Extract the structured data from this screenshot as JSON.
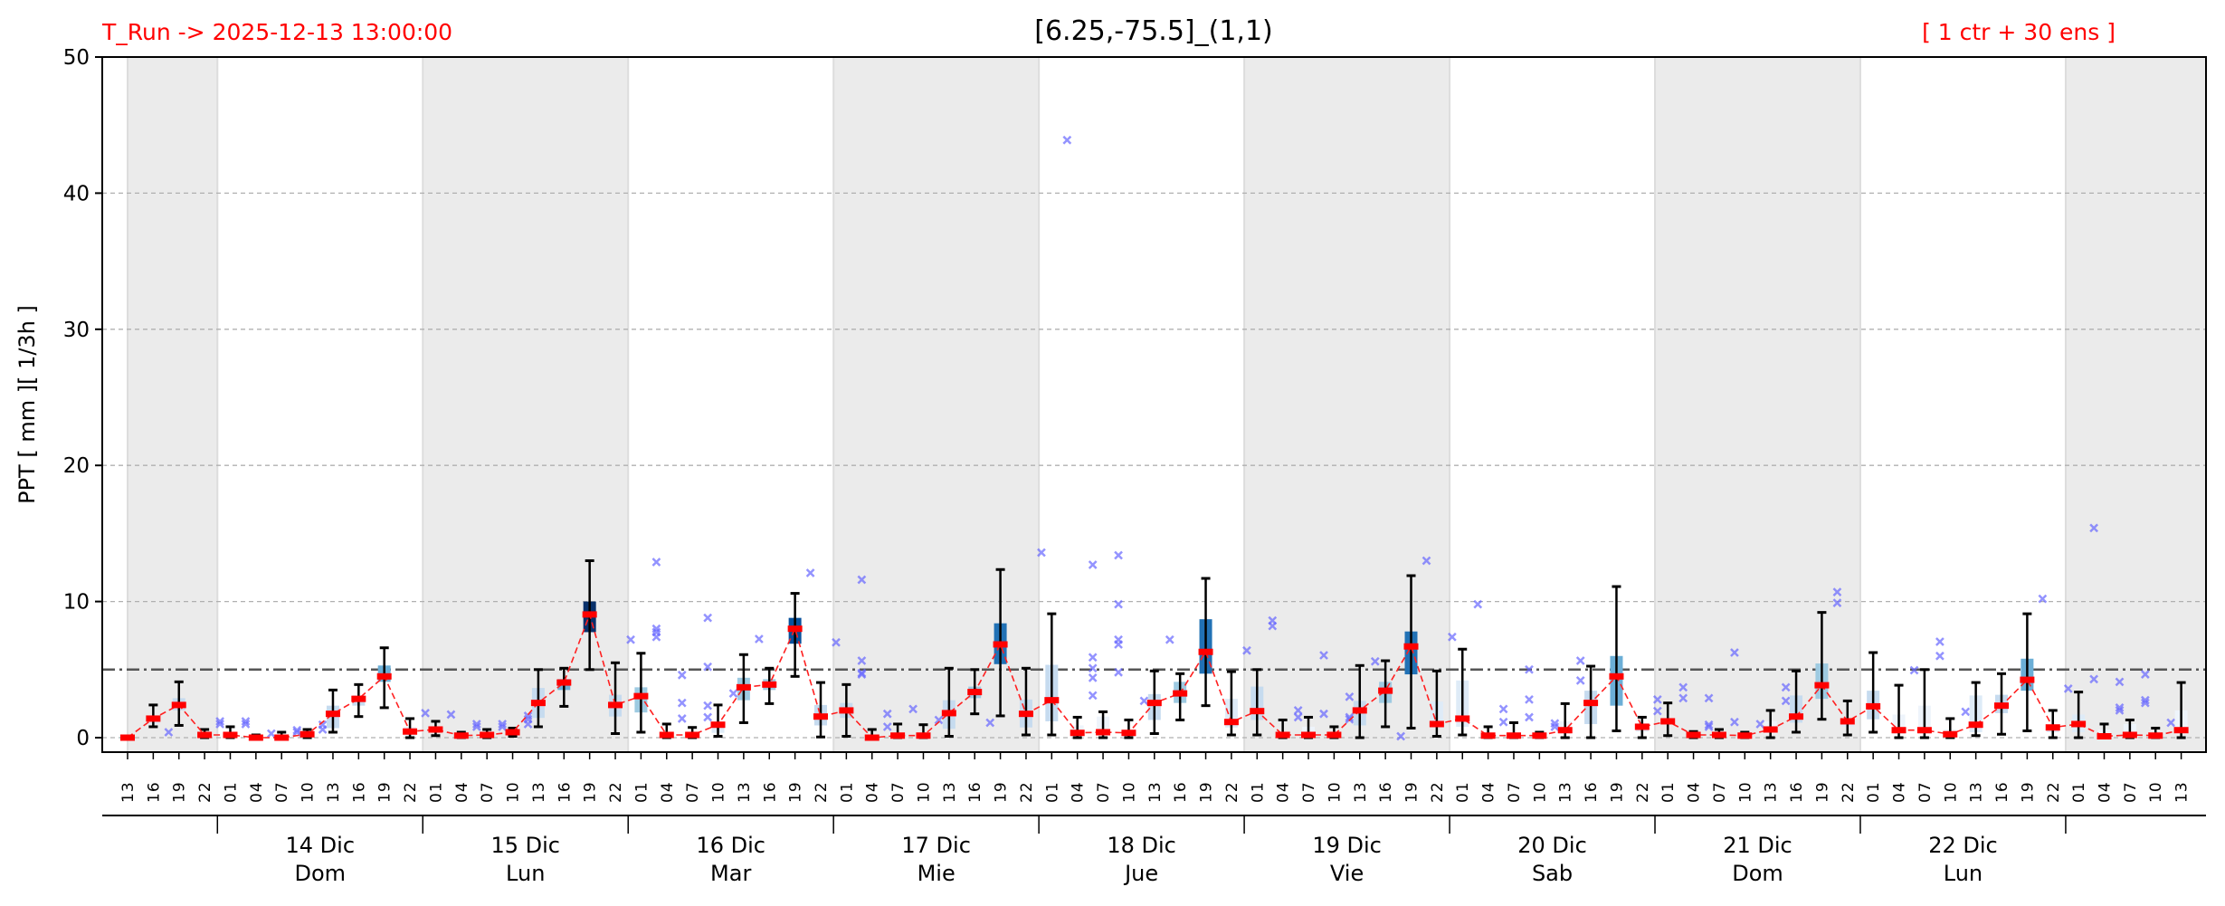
{
  "header": {
    "run_label": "T_Run -> 2025-12-13  13:00:00",
    "title": "[6.25,-75.5]_(1,1)",
    "ensemble_label": "[ 1 ctr + 30 ens ]"
  },
  "colors": {
    "header_text": "#ff0000",
    "median": "#ff0000",
    "median_line": "#ff2020",
    "outlier": "#6666ff",
    "shade": "#ebebeb",
    "threshold": "#555555",
    "grid": "#b0b0b0"
  },
  "chart_data": {
    "type": "box",
    "title": "[6.25,-75.5]_(1,1)",
    "ylabel": "PPT  [ mm ][ 1/3h ]",
    "xlabel": "",
    "ylim": [
      -1,
      50
    ],
    "yticks": [
      0,
      10,
      20,
      30,
      40,
      50
    ],
    "grid": "horizontal dashed",
    "threshold": 5,
    "hours": [
      "13",
      "16",
      "19",
      "22",
      "01",
      "04",
      "07",
      "10",
      "13",
      "16",
      "19",
      "22",
      "01",
      "04",
      "07",
      "10",
      "13",
      "16",
      "19",
      "22",
      "01",
      "04",
      "07",
      "10",
      "13",
      "16",
      "19",
      "22",
      "01",
      "04",
      "07",
      "10",
      "13",
      "16",
      "19",
      "22",
      "01",
      "04",
      "07",
      "10",
      "13",
      "16",
      "19",
      "22",
      "01",
      "04",
      "07",
      "10",
      "13",
      "16",
      "19",
      "22",
      "01",
      "04",
      "07",
      "10",
      "13",
      "16",
      "19",
      "22",
      "01",
      "04",
      "07",
      "10",
      "13",
      "16",
      "19",
      "22",
      "01",
      "04",
      "07",
      "10",
      "13",
      "16",
      "19",
      "22",
      "01",
      "04",
      "07",
      "10",
      "13"
    ],
    "days": [
      {
        "date": "14 Dic",
        "weekday": "Dom"
      },
      {
        "date": "15 Dic",
        "weekday": "Lun"
      },
      {
        "date": "16 Dic",
        "weekday": "Mar"
      },
      {
        "date": "17 Dic",
        "weekday": "Mie"
      },
      {
        "date": "18 Dic",
        "weekday": "Jue"
      },
      {
        "date": "19 Dic",
        "weekday": "Vie"
      },
      {
        "date": "20 Dic",
        "weekday": "Sab"
      },
      {
        "date": "21 Dic",
        "weekday": "Dom"
      },
      {
        "date": "22 Dic",
        "weekday": "Lun"
      }
    ],
    "fields": [
      "median",
      "q1",
      "q3",
      "whisker_low",
      "whisker_high",
      "outliers"
    ],
    "boxes": [
      [
        0,
        0,
        0,
        0,
        0,
        []
      ],
      [
        1.4,
        1.0,
        1.6,
        0.8,
        2.4,
        [
          0.4
        ]
      ],
      [
        2.4,
        2.0,
        2.9,
        0.9,
        4.1,
        []
      ],
      [
        0.2,
        0,
        0.4,
        0,
        0.6,
        [
          1.2,
          1.0
        ]
      ],
      [
        0.2,
        0,
        0.4,
        0,
        0.8,
        [
          1.2,
          1.0
        ]
      ],
      [
        0,
        0,
        0.1,
        0,
        0.2,
        [
          0.3
        ]
      ],
      [
        0,
        0,
        0.2,
        0,
        0.4,
        [
          0.55,
          0.4
        ]
      ],
      [
        0.25,
        0,
        0.4,
        0,
        0.6,
        [
          0.95,
          0.6
        ]
      ],
      [
        1.75,
        0.7,
        2.35,
        0.4,
        3.5,
        []
      ],
      [
        2.85,
        2.35,
        3.1,
        1.55,
        3.9,
        []
      ],
      [
        4.5,
        4.1,
        5.3,
        2.2,
        6.6,
        []
      ],
      [
        0.45,
        0.1,
        0.8,
        0,
        1.4,
        [
          1.8
        ]
      ],
      [
        0.6,
        0.4,
        0.8,
        0.15,
        1.2,
        [
          1.7
        ]
      ],
      [
        0.15,
        0,
        0.3,
        0,
        0.4,
        [
          1.0,
          0.8
        ]
      ],
      [
        0.2,
        0,
        0.3,
        0,
        0.6,
        [
          1.0,
          0.8
        ]
      ],
      [
        0.4,
        0.2,
        0.5,
        0.1,
        0.7,
        [
          1.6,
          1.35,
          1.0
        ]
      ],
      [
        2.55,
        1.45,
        3.65,
        0.8,
        5.0,
        []
      ],
      [
        4.05,
        3.5,
        4.3,
        2.3,
        5.1,
        []
      ],
      [
        9.05,
        7.75,
        10.0,
        5.0,
        13.0,
        []
      ],
      [
        2.4,
        1.55,
        3.15,
        0.3,
        5.5,
        [
          7.2
        ]
      ],
      [
        3.05,
        1.85,
        3.7,
        0.4,
        6.2,
        [
          12.9,
          8.0,
          7.75,
          7.4
        ]
      ],
      [
        0.2,
        0,
        0.4,
        0,
        1.0,
        [
          4.6,
          2.55,
          1.4
        ]
      ],
      [
        0.2,
        0,
        0.4,
        0,
        0.75,
        [
          8.8,
          5.2,
          2.35,
          1.5
        ]
      ],
      [
        0.95,
        0.35,
        1.1,
        0.1,
        2.4,
        [
          3.25
        ]
      ],
      [
        3.7,
        2.75,
        4.4,
        1.1,
        6.1,
        [
          7.25
        ]
      ],
      [
        3.9,
        3.5,
        4.3,
        2.5,
        5.1,
        []
      ],
      [
        8.0,
        6.9,
        8.8,
        4.5,
        10.6,
        [
          12.1
        ]
      ],
      [
        1.55,
        0.9,
        2.4,
        0.05,
        4.05,
        [
          7.0
        ]
      ],
      [
        2.0,
        1.45,
        2.55,
        0.1,
        3.9,
        [
          11.6,
          5.65,
          4.75,
          4.65
        ]
      ],
      [
        0,
        0,
        0.2,
        0,
        0.6,
        [
          1.75,
          0.8
        ]
      ],
      [
        0.15,
        0,
        0.3,
        0,
        1.0,
        [
          2.1
        ]
      ],
      [
        0.15,
        0,
        0.3,
        0,
        0.95,
        [
          1.3
        ]
      ],
      [
        1.8,
        0.65,
        2.75,
        0.1,
        5.1,
        []
      ],
      [
        3.35,
        2.9,
        3.75,
        1.75,
        5.0,
        [
          1.1
        ]
      ],
      [
        6.85,
        5.4,
        8.4,
        1.6,
        12.35,
        []
      ],
      [
        1.75,
        0.75,
        2.8,
        0.2,
        5.1,
        [
          13.6
        ]
      ],
      [
        2.75,
        1.2,
        5.35,
        0.2,
        9.1,
        [
          43.9
        ]
      ],
      [
        0.35,
        0,
        0.9,
        0,
        1.5,
        [
          12.7,
          5.9,
          5.1,
          4.4,
          3.1
        ]
      ],
      [
        0.4,
        0.25,
        1.55,
        0,
        1.9,
        [
          13.4,
          9.8,
          7.2,
          6.85,
          4.8
        ]
      ],
      [
        0.35,
        0,
        0.6,
        0,
        1.3,
        [
          2.7
        ]
      ],
      [
        2.55,
        1.3,
        3.2,
        0.3,
        4.9,
        [
          7.2
        ]
      ],
      [
        3.25,
        2.55,
        4.1,
        1.3,
        4.7,
        []
      ],
      [
        6.3,
        4.7,
        8.7,
        2.35,
        11.7,
        []
      ],
      [
        1.15,
        0.75,
        2.85,
        0.2,
        4.85,
        [
          6.4
        ]
      ],
      [
        1.95,
        1.3,
        3.75,
        0.2,
        5.0,
        [
          8.6,
          8.2
        ]
      ],
      [
        0.2,
        0,
        0.4,
        0,
        1.3,
        [
          2.0,
          1.5
        ]
      ],
      [
        0.2,
        0,
        0.8,
        0,
        1.5,
        [
          6.05,
          1.75
        ]
      ],
      [
        0.2,
        0,
        0.4,
        0,
        0.8,
        [
          3.0,
          1.5,
          1.35
        ]
      ],
      [
        2.0,
        0.9,
        2.7,
        0,
        5.3,
        [
          5.6
        ]
      ],
      [
        3.45,
        2.55,
        4.1,
        0.8,
        5.65,
        [
          0.1
        ]
      ],
      [
        6.7,
        4.65,
        7.8,
        0.7,
        11.9,
        [
          13.0
        ]
      ],
      [
        1.0,
        0.75,
        2.65,
        0.1,
        4.9,
        [
          7.4
        ]
      ],
      [
        1.4,
        0.8,
        4.2,
        0.2,
        6.5,
        [
          9.8
        ]
      ],
      [
        0.15,
        0,
        0.3,
        0,
        0.8,
        [
          2.1,
          1.15
        ]
      ],
      [
        0.15,
        0,
        0.4,
        0,
        1.1,
        [
          5.0,
          2.8,
          1.5
        ]
      ],
      [
        0.15,
        0,
        0.3,
        0,
        0.4,
        [
          1.05,
          0.8
        ]
      ],
      [
        0.55,
        0.25,
        1.2,
        0,
        2.5,
        [
          5.65,
          4.2
        ]
      ],
      [
        2.55,
        1.0,
        3.45,
        0,
        5.25,
        []
      ],
      [
        4.5,
        2.35,
        6.0,
        0.5,
        11.1,
        []
      ],
      [
        0.8,
        0.45,
        1.05,
        0,
        1.5,
        [
          2.8,
          1.95
        ]
      ],
      [
        1.2,
        1.05,
        1.35,
        0.15,
        2.55,
        [
          3.7,
          2.9
        ]
      ],
      [
        0.2,
        0,
        0.3,
        0,
        0.45,
        [
          2.9,
          0.95,
          0.8
        ]
      ],
      [
        0.2,
        0,
        0.4,
        0,
        0.6,
        [
          6.25,
          1.15
        ]
      ],
      [
        0.15,
        0,
        0.3,
        0,
        0.4,
        [
          1.0
        ]
      ],
      [
        0.6,
        0.25,
        1.2,
        0,
        2.0,
        [
          3.7,
          2.7
        ]
      ],
      [
        1.55,
        1.1,
        3.1,
        0.4,
        4.9,
        []
      ],
      [
        3.85,
        2.85,
        5.45,
        1.35,
        9.2,
        [
          10.7,
          9.9
        ]
      ],
      [
        1.2,
        0.8,
        1.35,
        0.2,
        2.7,
        []
      ],
      [
        2.3,
        1.35,
        3.45,
        0.4,
        6.25,
        []
      ],
      [
        0.55,
        0.25,
        1.7,
        0,
        3.85,
        [
          4.95
        ]
      ],
      [
        0.55,
        0.25,
        2.35,
        0,
        5.0,
        [
          7.05,
          6.0
        ]
      ],
      [
        0.25,
        0,
        0.6,
        0,
        1.4,
        [
          1.9
        ]
      ],
      [
        0.95,
        0.4,
        3.1,
        0.15,
        4.05,
        []
      ],
      [
        2.35,
        1.8,
        3.15,
        0.25,
        4.7,
        []
      ],
      [
        4.25,
        3.45,
        5.8,
        0.5,
        9.1,
        [
          10.2
        ]
      ],
      [
        0.75,
        0.4,
        0.95,
        0,
        2.0,
        [
          3.6
        ]
      ],
      [
        1.0,
        0.4,
        1.7,
        0,
        3.35,
        [
          15.4,
          4.3
        ]
      ],
      [
        0.1,
        0,
        0.6,
        0,
        1.0,
        [
          4.1,
          2.2,
          2.0
        ]
      ],
      [
        0.2,
        0,
        1.0,
        0,
        1.3,
        [
          4.65,
          2.75,
          2.55
        ]
      ],
      [
        0.15,
        0,
        0.3,
        0,
        0.7,
        [
          1.1
        ]
      ],
      [
        0.55,
        0.25,
        2.0,
        0,
        4.05,
        []
      ]
    ]
  }
}
